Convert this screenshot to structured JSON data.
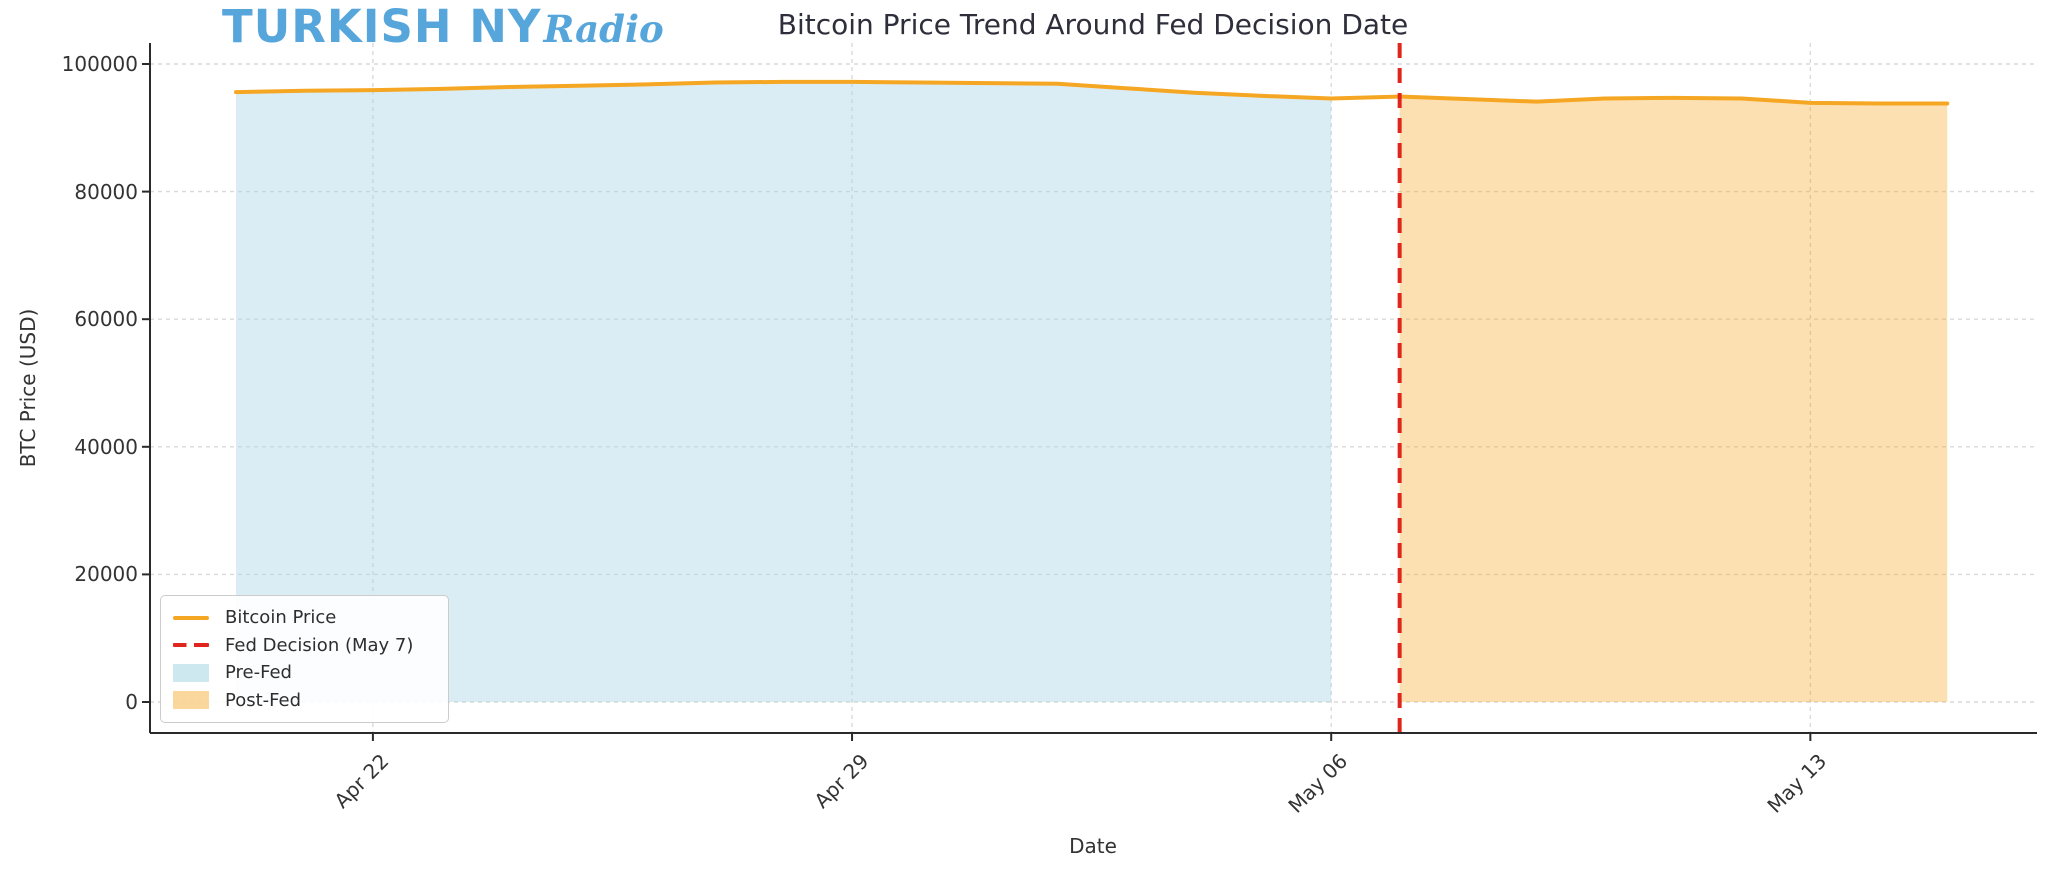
{
  "logo": {
    "text_main": "TURKISH NY",
    "text_script": "Radio",
    "color": "#56A6DB"
  },
  "title": "Bitcoin Price Trend Around Fed Decision Date",
  "chart_data": {
    "type": "line",
    "title": "Bitcoin Price Trend Around Fed Decision Date",
    "xlabel": "Date",
    "ylabel": "BTC Price (USD)",
    "x": [
      "Apr 20",
      "Apr 21",
      "Apr 22",
      "Apr 23",
      "Apr 24",
      "Apr 25",
      "Apr 26",
      "Apr 27",
      "Apr 28",
      "Apr 29",
      "Apr 30",
      "May 01",
      "May 02",
      "May 03",
      "May 04",
      "May 05",
      "May 06",
      "May 07",
      "May 08",
      "May 09",
      "May 10",
      "May 11",
      "May 12",
      "May 13",
      "May 14",
      "May 15"
    ],
    "series": [
      {
        "name": "Bitcoin Price",
        "color": "#F5A623",
        "values": [
          95600,
          95800,
          95900,
          96100,
          96400,
          96600,
          96800,
          97100,
          97200,
          97200,
          97100,
          97000,
          96900,
          96200,
          95500,
          95000,
          94600,
          94900,
          94500,
          94100,
          94600,
          94700,
          94600,
          93900,
          93800,
          93800
        ]
      }
    ],
    "x_tick_labels": [
      "Apr 22",
      "Apr 29",
      "May 06",
      "May 13"
    ],
    "y_ticks": [
      0,
      20000,
      40000,
      60000,
      80000,
      100000
    ],
    "ylim": [
      -4900,
      103300
    ],
    "grid": true,
    "annotations": {
      "fed_decision": {
        "label": "Fed Decision (May 7)",
        "x": "May 07",
        "color": "#E0261C",
        "style": "dashed-vertical"
      }
    },
    "regions": [
      {
        "name": "Pre-Fed",
        "from": "Apr 20",
        "to": "May 06",
        "color": "rgba(173,216,230,0.45)"
      },
      {
        "name": "Post-Fed",
        "from": "May 07",
        "to": "May 15",
        "color": "rgba(245,166,35,0.35)"
      }
    ],
    "legend_position": "lower left"
  },
  "legend": {
    "items": [
      {
        "label": "Bitcoin Price",
        "swatch": "line",
        "color": "#F5A623"
      },
      {
        "label": "Fed Decision (May 7)",
        "swatch": "dash",
        "color": "#E0261C"
      },
      {
        "label": "Pre-Fed",
        "swatch": "patch",
        "color": "rgba(173,216,230,0.6)"
      },
      {
        "label": "Post-Fed",
        "swatch": "patch",
        "color": "rgba(245,166,35,0.45)"
      }
    ]
  },
  "colors": {
    "spine": "#2a2a2a",
    "grid": "#d9d9d9",
    "tick_text": "#333333",
    "title_text": "#2f2f3c"
  }
}
